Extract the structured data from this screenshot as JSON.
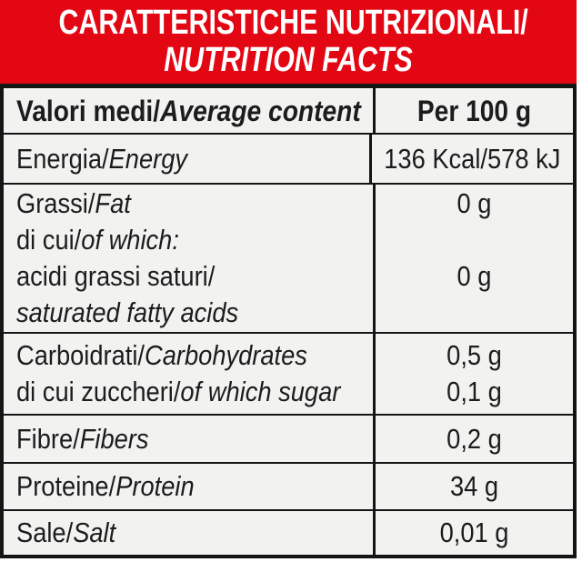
{
  "header": {
    "title": "CARATTERISTICHE NUTRIZIONALI/",
    "subtitle": "NUTRITION FACTS"
  },
  "colors": {
    "accent_red": "#e30613",
    "table_background": "#f2f2f1",
    "border_black": "#151515",
    "header_text": "#ffffff"
  },
  "table": {
    "header_row": {
      "label": [
        "Valori medi/",
        "Average content"
      ],
      "value": "Per 100 g"
    },
    "rows": {
      "energy": {
        "label_lines": [
          [
            "Energia/",
            "Energy"
          ]
        ],
        "values": [
          "136 Kcal/578 kJ"
        ]
      },
      "fat": {
        "label_lines": [
          [
            "Grassi/",
            "Fat"
          ],
          [
            "di cui/",
            "of which:"
          ],
          [
            "acidi grassi saturi/"
          ],
          [
            "saturated fatty acids"
          ]
        ],
        "values": [
          "0 g",
          "",
          "0 g",
          ""
        ]
      },
      "carbs": {
        "label_lines": [
          [
            "Carboidrati/",
            "Carbohydrates"
          ],
          [
            "di cui zuccheri/",
            "of which sugar"
          ]
        ],
        "values": [
          "0,5 g",
          "0,1 g"
        ]
      },
      "fiber": {
        "label_lines": [
          [
            "Fibre/",
            "Fibers"
          ]
        ],
        "values": [
          "0,2 g"
        ]
      },
      "protein": {
        "label_lines": [
          [
            "Proteine/",
            "Protein"
          ]
        ],
        "values": [
          "34 g"
        ]
      },
      "salt": {
        "label_lines": [
          [
            "Sale/",
            "Salt"
          ]
        ],
        "values": [
          "0,01 g"
        ]
      }
    }
  }
}
